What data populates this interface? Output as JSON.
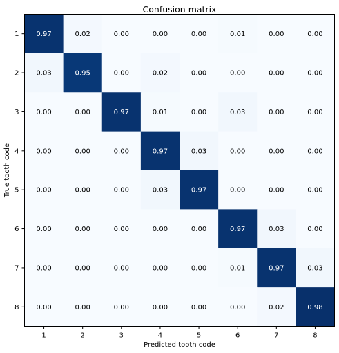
{
  "chart_data": {
    "type": "heatmap",
    "title": "Confusion matrix",
    "xlabel": "Predicted tooth code",
    "ylabel": "True tooth code",
    "x_categories": [
      "1",
      "2",
      "3",
      "4",
      "5",
      "6",
      "7",
      "8"
    ],
    "y_categories": [
      "1",
      "2",
      "3",
      "4",
      "5",
      "6",
      "7",
      "8"
    ],
    "values": [
      [
        0.97,
        0.02,
        0.0,
        0.0,
        0.0,
        0.01,
        0.0,
        0.0
      ],
      [
        0.03,
        0.95,
        0.0,
        0.02,
        0.0,
        0.0,
        0.0,
        0.0
      ],
      [
        0.0,
        0.0,
        0.97,
        0.01,
        0.0,
        0.03,
        0.0,
        0.0
      ],
      [
        0.0,
        0.0,
        0.0,
        0.97,
        0.03,
        0.0,
        0.0,
        0.0
      ],
      [
        0.0,
        0.0,
        0.0,
        0.03,
        0.97,
        0.0,
        0.0,
        0.0
      ],
      [
        0.0,
        0.0,
        0.0,
        0.0,
        0.0,
        0.97,
        0.03,
        0.0
      ],
      [
        0.0,
        0.0,
        0.0,
        0.0,
        0.0,
        0.01,
        0.97,
        0.03
      ],
      [
        0.0,
        0.0,
        0.0,
        0.0,
        0.0,
        0.0,
        0.02,
        0.98
      ]
    ],
    "value_format": "0.00",
    "colormap": "Blues",
    "colorscale": {
      "min_color": "#f7fbff",
      "max_color": "#08306b",
      "vmin": 0,
      "vmax": 0.98
    },
    "text_colors": {
      "light_cells": "#000000",
      "dark_cells": "#ffffff"
    },
    "grid": false,
    "legend": "none"
  }
}
